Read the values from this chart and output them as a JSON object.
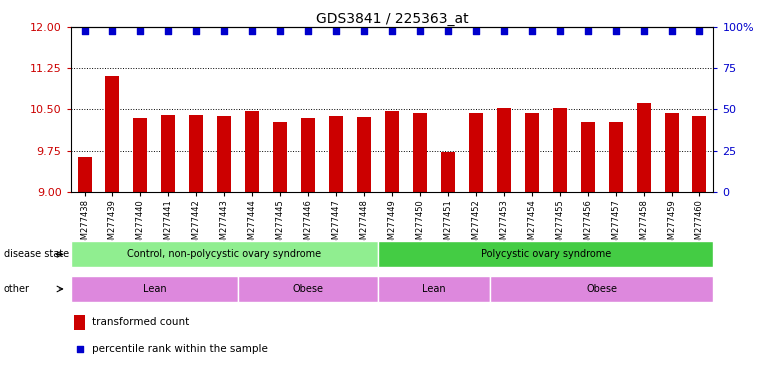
{
  "title": "GDS3841 / 225363_at",
  "samples": [
    "GSM277438",
    "GSM277439",
    "GSM277440",
    "GSM277441",
    "GSM277442",
    "GSM277443",
    "GSM277444",
    "GSM277445",
    "GSM277446",
    "GSM277447",
    "GSM277448",
    "GSM277449",
    "GSM277450",
    "GSM277451",
    "GSM277452",
    "GSM277453",
    "GSM277454",
    "GSM277455",
    "GSM277456",
    "GSM277457",
    "GSM277458",
    "GSM277459",
    "GSM277460"
  ],
  "bar_values": [
    9.63,
    11.1,
    10.35,
    10.4,
    10.4,
    10.38,
    10.48,
    10.28,
    10.34,
    10.38,
    10.36,
    10.47,
    10.43,
    9.72,
    10.43,
    10.52,
    10.44,
    10.52,
    10.27,
    10.28,
    10.62,
    10.44,
    10.38
  ],
  "percentile_values": [
    11.93,
    11.93,
    11.93,
    11.93,
    11.93,
    11.93,
    11.93,
    11.93,
    11.93,
    11.93,
    11.93,
    11.93,
    11.93,
    11.93,
    11.93,
    11.93,
    11.93,
    11.93,
    11.93,
    11.93,
    11.93,
    11.93,
    11.93
  ],
  "bar_color": "#cc0000",
  "percentile_color": "#0000cc",
  "ylim_left": [
    9.0,
    12.0
  ],
  "yticks_left": [
    9.0,
    9.75,
    10.5,
    11.25,
    12.0
  ],
  "yticks_right": [
    0,
    25,
    50,
    75,
    100
  ],
  "disease_state_groups": [
    {
      "label": "Control, non-polycystic ovary syndrome",
      "start": 0,
      "end": 11,
      "color": "#90ee90"
    },
    {
      "label": "Polycystic ovary syndrome",
      "start": 11,
      "end": 23,
      "color": "#44cc44"
    }
  ],
  "other_groups": [
    {
      "label": "Lean",
      "start": 0,
      "end": 6
    },
    {
      "label": "Obese",
      "start": 6,
      "end": 11
    },
    {
      "label": "Lean",
      "start": 11,
      "end": 15
    },
    {
      "label": "Obese",
      "start": 15,
      "end": 23
    }
  ],
  "legend_items": [
    {
      "label": "transformed count",
      "color": "#cc0000"
    },
    {
      "label": "percentile rank within the sample",
      "color": "#0000cc"
    }
  ],
  "background_color": "#ffffff",
  "tick_label_color": "#cc0000",
  "right_tick_color": "#0000cc",
  "other_color": "#dd88dd",
  "title_fontsize": 10
}
